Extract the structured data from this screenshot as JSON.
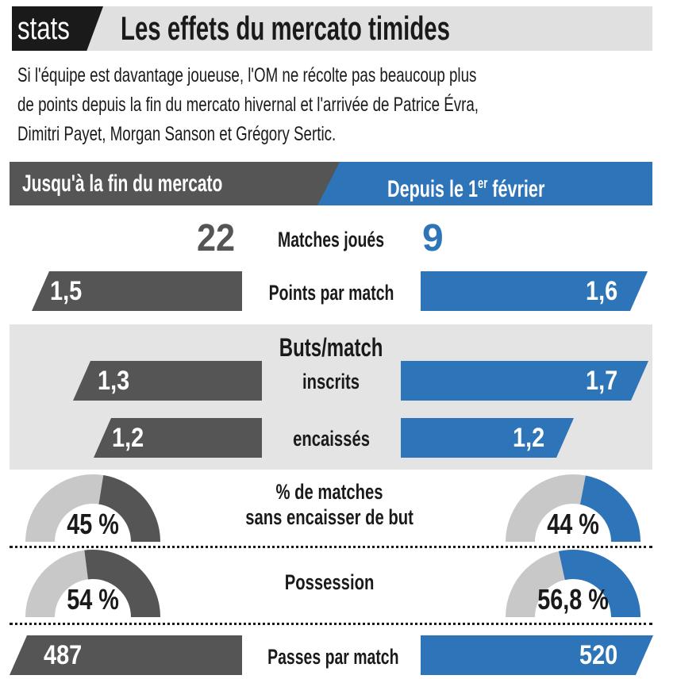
{
  "header": {
    "tag": "stats",
    "title": "Les effets du mercato timides"
  },
  "intro": {
    "line1": "Si l'équipe est davantage joueuse, l'OM ne récolte pas beaucoup plus",
    "line2": "de points depuis la fin du mercato hivernal et l'arrivée de Patrice Évra,",
    "line3": "Dimitri Payet, Morgan Sanson et Grégory Sertic."
  },
  "columns": {
    "left": "Jusqu'à la fin du mercato",
    "right_prefix": "Depuis le 1",
    "right_sup": "er",
    "right_suffix": " février"
  },
  "colors": {
    "left": "#555555",
    "right": "#2e74b9",
    "track": "#c8c8c8",
    "band": "#e4e4e4"
  },
  "chart_data": {
    "type": "table",
    "periods": [
      "Jusqu'à la fin du mercato",
      "Depuis le 1er février"
    ],
    "rows": [
      {
        "key": "matches",
        "label": "Matches joués",
        "left": 22,
        "right": 9,
        "left_text": "22",
        "right_text": "9"
      },
      {
        "key": "points",
        "label": "Points par match",
        "left": 1.5,
        "right": 1.6,
        "left_text": "1,5",
        "right_text": "1,6"
      },
      {
        "key": "buts_title",
        "label": "Buts/match"
      },
      {
        "key": "scored",
        "label": "inscrits",
        "left": 1.3,
        "right": 1.7,
        "left_text": "1,3",
        "right_text": "1,7"
      },
      {
        "key": "conceded",
        "label": "encaissés",
        "left": 1.2,
        "right": 1.2,
        "left_text": "1,2",
        "right_text": "1,2"
      },
      {
        "key": "clean",
        "label_line1": "% de matches",
        "label_line2": "sans encaisser de but",
        "left": 45,
        "right": 44,
        "left_text": "45 %",
        "right_text": "44 %",
        "unit": "%"
      },
      {
        "key": "possession",
        "label": "Possession",
        "left": 54,
        "right": 56.8,
        "left_text": "54 %",
        "right_text": "56,8 %",
        "unit": "%"
      },
      {
        "key": "passes",
        "label": "Passes par match",
        "left": 487,
        "right": 520,
        "left_text": "487",
        "right_text": "520"
      }
    ]
  }
}
